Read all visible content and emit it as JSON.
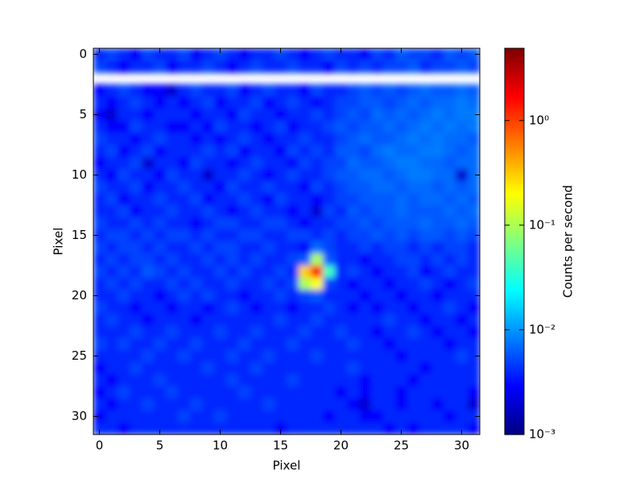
{
  "chart_data": {
    "type": "heatmap",
    "xlabel": "Pixel",
    "ylabel": "Pixel",
    "colorbar_label": "Counts per second",
    "colormap": "jet",
    "color_scale": "log",
    "nan_color": "#ffffff",
    "xlim": [
      -0.5,
      31.5
    ],
    "ylim": [
      31.5,
      -0.5
    ],
    "xticks": [
      0,
      5,
      10,
      15,
      20,
      25,
      30
    ],
    "yticks": [
      0,
      5,
      10,
      15,
      20,
      25,
      30
    ],
    "clim": [
      0.001,
      4.9
    ],
    "cticks": [
      {
        "value": 0.001,
        "label": "10⁻³"
      },
      {
        "value": 0.01,
        "label": "10⁻²"
      },
      {
        "value": 0.1,
        "label": "10⁻¹"
      },
      {
        "value": 1,
        "label": "10⁰"
      }
    ],
    "z": [
      [
        0.004,
        0.005,
        0.004,
        0.003,
        0.005,
        0.004,
        0.004,
        0.005,
        0.003,
        0.004,
        0.005,
        0.004,
        0.003,
        0.004,
        0.004,
        0.005,
        0.004,
        0.003,
        0.004,
        0.005,
        0.004,
        0.004,
        0.003,
        0.005,
        0.004,
        0.006,
        0.005,
        0.005,
        0.004,
        0.006,
        0.005,
        0.006
      ],
      [
        0.005,
        0.004,
        0.003,
        0.004,
        0.004,
        0.005,
        0.003,
        0.004,
        0.004,
        0.005,
        0.004,
        0.003,
        0.004,
        0.005,
        0.004,
        0.004,
        0.005,
        0.004,
        0.004,
        0.003,
        0.005,
        0.004,
        0.005,
        0.004,
        0.005,
        0.005,
        0.006,
        0.004,
        0.005,
        0.005,
        0.006,
        0.005
      ],
      [
        null,
        null,
        null,
        null,
        null,
        null,
        null,
        null,
        null,
        null,
        null,
        null,
        null,
        null,
        null,
        null,
        null,
        null,
        null,
        null,
        null,
        null,
        null,
        null,
        null,
        null,
        null,
        null,
        null,
        null,
        null,
        null
      ],
      [
        0.003,
        0.004,
        0.005,
        0.004,
        0.003,
        0.003,
        0.002,
        0.004,
        0.005,
        0.004,
        0.004,
        0.005,
        0.003,
        0.004,
        0.005,
        0.004,
        0.004,
        0.003,
        0.005,
        0.004,
        0.004,
        0.005,
        0.006,
        0.005,
        0.006,
        0.005,
        0.006,
        0.007,
        0.006,
        0.006,
        0.007,
        0.006
      ],
      [
        0.004,
        0.003,
        0.004,
        0.005,
        0.004,
        0.003,
        0.004,
        0.003,
        0.004,
        0.005,
        0.003,
        0.004,
        0.004,
        0.005,
        0.003,
        0.004,
        0.005,
        0.004,
        0.003,
        0.004,
        0.005,
        0.005,
        0.006,
        0.006,
        0.005,
        0.006,
        0.007,
        0.006,
        0.007,
        0.007,
        0.008,
        0.007
      ],
      [
        0.003,
        0.002,
        0.004,
        0.004,
        0.003,
        0.004,
        0.004,
        0.004,
        0.003,
        0.004,
        0.004,
        0.003,
        0.005,
        0.004,
        0.004,
        0.003,
        0.004,
        0.004,
        0.005,
        0.004,
        0.005,
        0.006,
        0.005,
        0.007,
        0.006,
        0.007,
        0.006,
        0.007,
        0.008,
        0.007,
        0.008,
        0.008
      ],
      [
        0.004,
        0.003,
        0.003,
        0.005,
        0.004,
        0.004,
        0.003,
        0.003,
        0.004,
        0.003,
        0.005,
        0.004,
        0.004,
        0.003,
        0.004,
        0.005,
        0.003,
        0.004,
        0.004,
        0.005,
        0.006,
        0.005,
        0.006,
        0.006,
        0.007,
        0.006,
        0.007,
        0.008,
        0.007,
        0.008,
        0.007,
        0.008
      ],
      [
        0.005,
        0.004,
        0.004,
        0.003,
        0.004,
        0.005,
        0.004,
        0.004,
        0.003,
        0.004,
        0.003,
        0.004,
        0.005,
        0.004,
        0.003,
        0.004,
        0.004,
        0.005,
        0.004,
        0.004,
        0.005,
        0.006,
        0.007,
        0.006,
        0.006,
        0.007,
        0.008,
        0.007,
        0.008,
        0.007,
        0.007,
        0.006
      ],
      [
        0.004,
        0.005,
        0.003,
        0.004,
        0.005,
        0.003,
        0.004,
        0.004,
        0.004,
        0.005,
        0.004,
        0.005,
        0.003,
        0.004,
        0.004,
        0.003,
        0.005,
        0.004,
        0.005,
        0.004,
        0.006,
        0.006,
        0.005,
        0.007,
        0.008,
        0.007,
        0.007,
        0.008,
        0.008,
        0.007,
        0.006,
        0.007
      ],
      [
        0.003,
        0.004,
        0.004,
        0.005,
        0.002,
        0.004,
        0.004,
        0.003,
        0.005,
        0.004,
        0.004,
        0.003,
        0.004,
        0.005,
        0.004,
        0.004,
        0.003,
        0.005,
        0.004,
        0.005,
        0.005,
        0.007,
        0.006,
        0.006,
        0.007,
        0.008,
        0.008,
        0.007,
        0.007,
        0.006,
        0.007,
        0.007
      ],
      [
        0.004,
        0.003,
        0.005,
        0.004,
        0.004,
        0.003,
        0.005,
        0.004,
        0.004,
        0.002,
        0.004,
        0.004,
        0.005,
        0.004,
        0.003,
        0.004,
        0.005,
        0.004,
        0.004,
        0.005,
        0.006,
        0.006,
        0.007,
        0.007,
        0.006,
        0.007,
        0.008,
        0.008,
        0.007,
        0.007,
        0.002,
        0.007
      ],
      [
        0.005,
        0.004,
        0.004,
        0.005,
        0.003,
        0.004,
        0.004,
        0.005,
        0.004,
        0.004,
        0.003,
        0.005,
        0.004,
        0.004,
        0.005,
        0.004,
        0.004,
        0.003,
        0.005,
        0.004,
        0.005,
        0.006,
        0.006,
        0.007,
        0.007,
        0.006,
        0.007,
        0.007,
        0.006,
        0.007,
        0.006,
        0.007
      ],
      [
        0.004,
        0.005,
        0.003,
        0.004,
        0.004,
        0.005,
        0.004,
        0.004,
        0.005,
        0.003,
        0.004,
        0.004,
        0.005,
        0.004,
        0.003,
        0.005,
        0.004,
        0.004,
        0.003,
        0.004,
        0.005,
        0.005,
        0.006,
        0.006,
        0.006,
        0.007,
        0.006,
        0.007,
        0.007,
        0.006,
        0.007,
        0.006
      ],
      [
        0.004,
        0.004,
        0.005,
        0.003,
        0.004,
        0.004,
        0.005,
        0.004,
        0.004,
        0.005,
        0.004,
        0.003,
        0.004,
        0.005,
        0.004,
        0.004,
        0.003,
        0.004,
        0.002,
        0.005,
        0.004,
        0.006,
        0.005,
        0.006,
        0.006,
        0.007,
        0.006,
        0.006,
        0.006,
        0.007,
        0.006,
        0.007
      ],
      [
        0.005,
        0.004,
        0.004,
        0.005,
        0.004,
        0.005,
        0.004,
        0.004,
        0.003,
        0.004,
        0.005,
        0.005,
        0.004,
        0.004,
        0.005,
        0.005,
        0.004,
        0.003,
        0.004,
        0.004,
        0.005,
        0.005,
        0.006,
        0.005,
        0.006,
        0.006,
        0.006,
        0.007,
        0.006,
        0.006,
        0.007,
        0.006
      ],
      [
        0.004,
        0.005,
        0.005,
        0.004,
        0.005,
        0.004,
        0.005,
        0.005,
        0.004,
        0.005,
        0.004,
        0.004,
        0.005,
        0.005,
        0.004,
        0.004,
        0.005,
        0.005,
        0.004,
        0.005,
        0.004,
        0.005,
        0.005,
        0.006,
        0.005,
        0.006,
        0.005,
        0.006,
        0.006,
        0.005,
        0.006,
        0.005
      ],
      [
        0.005,
        0.004,
        0.005,
        0.005,
        0.004,
        0.005,
        0.004,
        0.004,
        0.005,
        0.004,
        0.005,
        0.005,
        0.004,
        0.004,
        0.005,
        0.004,
        0.004,
        0.003,
        0.007,
        0.005,
        0.004,
        0.004,
        0.005,
        0.004,
        0.005,
        0.005,
        0.004,
        0.005,
        0.004,
        0.005,
        0.005,
        0.004
      ],
      [
        0.004,
        0.005,
        0.004,
        0.005,
        0.005,
        0.004,
        0.005,
        0.004,
        0.004,
        0.005,
        0.004,
        0.005,
        0.004,
        0.005,
        0.004,
        0.004,
        0.005,
        0.006,
        0.1,
        0.006,
        0.004,
        0.004,
        0.003,
        0.004,
        0.004,
        0.005,
        0.005,
        0.004,
        0.005,
        0.004,
        0.005,
        0.004
      ],
      [
        0.005,
        0.004,
        0.005,
        0.004,
        0.006,
        0.005,
        0.004,
        0.005,
        0.004,
        0.004,
        0.005,
        0.004,
        0.005,
        0.004,
        0.004,
        0.005,
        0.004,
        0.3,
        1.5,
        0.04,
        0.004,
        0.005,
        0.004,
        0.003,
        0.004,
        0.004,
        0.005,
        0.003,
        0.004,
        0.005,
        0.004,
        0.004
      ],
      [
        0.004,
        0.005,
        0.004,
        0.005,
        0.004,
        0.004,
        0.005,
        0.004,
        0.005,
        0.004,
        0.004,
        0.005,
        0.004,
        0.004,
        0.005,
        0.004,
        0.005,
        0.1,
        0.2,
        0.005,
        0.004,
        0.003,
        0.004,
        0.004,
        0.003,
        0.004,
        0.004,
        0.005,
        0.004,
        0.003,
        0.004,
        0.005
      ],
      [
        0.004,
        0.004,
        0.005,
        0.004,
        0.004,
        0.003,
        0.004,
        0.005,
        0.004,
        0.005,
        0.004,
        0.004,
        0.003,
        0.004,
        0.004,
        0.005,
        0.004,
        0.005,
        0.006,
        0.004,
        0.004,
        0.004,
        0.003,
        0.004,
        0.004,
        0.003,
        0.004,
        0.004,
        0.003,
        0.004,
        0.004,
        0.004
      ],
      [
        0.005,
        0.004,
        0.004,
        0.003,
        0.004,
        0.004,
        0.003,
        0.004,
        0.004,
        0.003,
        0.004,
        0.005,
        0.004,
        0.003,
        0.004,
        0.004,
        0.003,
        0.004,
        0.004,
        0.005,
        0.004,
        0.003,
        0.004,
        0.003,
        0.004,
        0.004,
        0.003,
        0.004,
        0.004,
        0.005,
        0.004,
        0.003
      ],
      [
        0.004,
        0.005,
        0.004,
        0.004,
        0.003,
        0.004,
        0.004,
        0.004,
        0.003,
        0.004,
        0.004,
        0.004,
        0.004,
        0.004,
        0.004,
        0.005,
        0.004,
        0.004,
        0.005,
        0.004,
        0.004,
        0.004,
        0.004,
        0.004,
        0.005,
        0.004,
        0.004,
        0.003,
        0.004,
        0.004,
        0.003,
        0.004
      ],
      [
        0.004,
        0.004,
        0.004,
        0.005,
        0.004,
        0.004,
        0.005,
        0.004,
        0.004,
        0.004,
        0.005,
        0.004,
        0.004,
        0.005,
        0.004,
        0.004,
        0.004,
        0.005,
        0.004,
        0.004,
        0.005,
        0.004,
        0.004,
        0.003,
        0.004,
        0.004,
        0.005,
        0.004,
        0.003,
        0.004,
        0.004,
        0.003
      ],
      [
        0.005,
        0.004,
        0.005,
        0.004,
        0.004,
        0.005,
        0.004,
        0.004,
        0.005,
        0.004,
        0.004,
        0.004,
        0.005,
        0.004,
        0.004,
        0.004,
        0.005,
        0.004,
        0.004,
        0.004,
        0.004,
        0.005,
        0.004,
        0.004,
        0.003,
        0.004,
        0.004,
        0.004,
        0.004,
        0.003,
        0.004,
        0.004
      ],
      [
        0.004,
        0.004,
        0.004,
        0.004,
        0.005,
        0.004,
        0.004,
        0.005,
        0.004,
        0.004,
        0.004,
        0.005,
        0.004,
        0.004,
        0.005,
        0.004,
        0.004,
        0.004,
        0.005,
        0.004,
        0.004,
        0.004,
        0.004,
        0.004,
        0.004,
        0.003,
        0.004,
        0.004,
        0.004,
        0.004,
        0.005,
        0.004
      ],
      [
        0.003,
        0.004,
        0.004,
        0.005,
        0.004,
        0.004,
        0.004,
        0.004,
        0.004,
        0.005,
        0.004,
        0.004,
        0.004,
        0.005,
        0.004,
        0.004,
        0.004,
        0.004,
        0.004,
        0.004,
        0.004,
        0.005,
        0.004,
        0.004,
        0.004,
        0.004,
        0.004,
        0.003,
        0.004,
        0.004,
        0.004,
        0.004
      ],
      [
        0.004,
        0.003,
        0.004,
        0.004,
        0.004,
        0.005,
        0.004,
        0.004,
        0.004,
        0.004,
        0.004,
        0.005,
        0.004,
        0.004,
        0.004,
        0.004,
        0.005,
        0.004,
        0.004,
        0.004,
        0.004,
        0.004,
        0.003,
        0.004,
        0.004,
        0.004,
        0.003,
        0.004,
        0.004,
        0.004,
        0.004,
        0.004
      ],
      [
        0.003,
        0.004,
        0.005,
        0.004,
        0.004,
        0.004,
        0.005,
        0.004,
        0.004,
        0.004,
        0.004,
        0.004,
        0.005,
        0.004,
        0.004,
        0.004,
        0.004,
        0.004,
        0.004,
        0.004,
        0.003,
        0.004,
        0.003,
        0.004,
        0.004,
        0.003,
        0.004,
        0.004,
        0.004,
        0.004,
        0.004,
        0.003
      ],
      [
        0.004,
        0.003,
        0.004,
        0.004,
        0.005,
        0.004,
        0.004,
        0.004,
        0.005,
        0.004,
        0.004,
        0.004,
        0.004,
        0.004,
        0.005,
        0.004,
        0.004,
        0.004,
        0.004,
        0.004,
        0.004,
        0.003,
        0.002,
        0.004,
        0.004,
        0.003,
        0.004,
        0.004,
        0.003,
        0.004,
        0.004,
        0.002
      ],
      [
        0.003,
        0.004,
        0.004,
        0.004,
        0.004,
        0.004,
        0.004,
        0.005,
        0.004,
        0.004,
        0.005,
        0.004,
        0.004,
        0.004,
        0.004,
        0.004,
        0.004,
        0.004,
        0.004,
        0.003,
        0.004,
        0.004,
        0.003,
        0.003,
        0.004,
        0.004,
        0.004,
        0.004,
        0.004,
        0.003,
        0.004,
        0.004
      ],
      [
        0.004,
        0.004,
        0.003,
        0.004,
        0.004,
        0.004,
        0.004,
        0.004,
        0.004,
        0.004,
        0.004,
        0.004,
        0.004,
        0.004,
        0.004,
        0.003,
        0.004,
        0.004,
        0.004,
        0.004,
        0.004,
        0.004,
        0.004,
        0.004,
        0.003,
        0.004,
        0.003,
        0.004,
        0.004,
        0.004,
        0.004,
        0.003
      ]
    ]
  }
}
